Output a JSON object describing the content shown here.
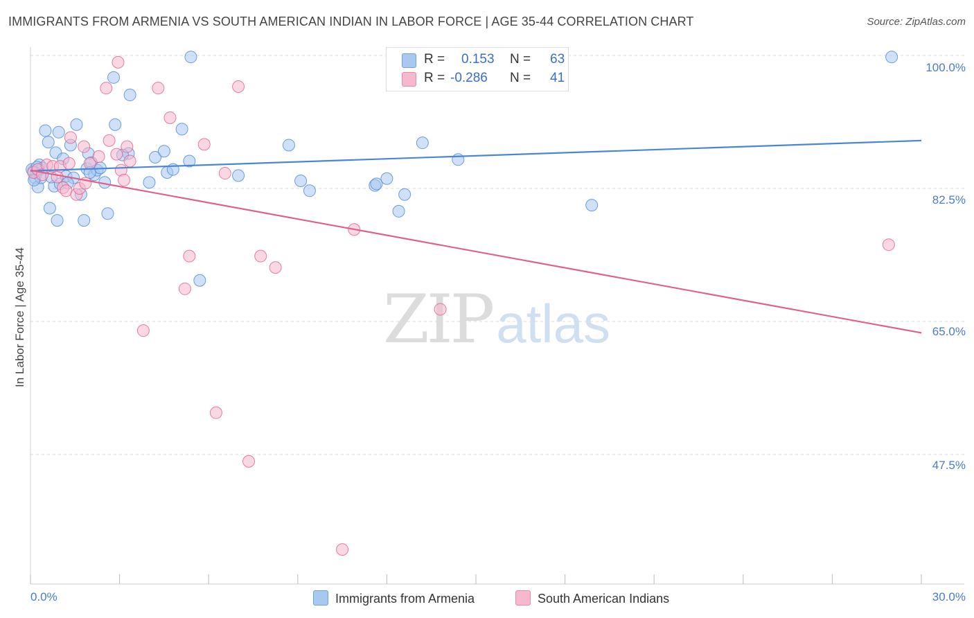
{
  "title": "IMMIGRANTS FROM ARMENIA VS SOUTH AMERICAN INDIAN IN LABOR FORCE | AGE 35-44 CORRELATION CHART",
  "source": "Source: ZipAtlas.com",
  "watermark": {
    "zip": "ZIP",
    "atlas": "atlas"
  },
  "legend": {
    "rows": [
      {
        "r_label": "R =",
        "r_value": "0.153",
        "n_label": "N =",
        "n_value": "63",
        "color": "#a9c8f0"
      },
      {
        "r_label": "R =",
        "r_value": "-0.286",
        "n_label": "N =",
        "n_value": "41",
        "color": "#f6b8cc"
      }
    ]
  },
  "bottom_legend": [
    {
      "label": "Immigrants from Armenia",
      "color": "#a9c8f0"
    },
    {
      "label": "South American Indians",
      "color": "#f6b8cc"
    }
  ],
  "chart_data": {
    "type": "scatter",
    "title": "IMMIGRANTS FROM ARMENIA VS SOUTH AMERICAN INDIAN IN LABOR FORCE | AGE 35-44 CORRELATION CHART",
    "xlabel": "",
    "ylabel": "In Labor Force | Age 35-44",
    "xlim": [
      0,
      30
    ],
    "ylim": [
      32,
      102
    ],
    "x_tick_labels": [
      "0.0%",
      "30.0%"
    ],
    "y_ticks": [
      47.5,
      65.0,
      82.5,
      100.0
    ],
    "y_tick_labels": [
      "47.5%",
      "65.0%",
      "82.5%",
      "100.0%"
    ],
    "grid": "horizontal dashed",
    "legend_position": "top-center",
    "series": [
      {
        "name": "Immigrants from Armenia",
        "color": "#4a86d8",
        "fill": "#a9c8f0",
        "points": [
          [
            0.1,
            84.8
          ],
          [
            0.15,
            83.9
          ],
          [
            0.2,
            84.5
          ],
          [
            0.25,
            82.7
          ],
          [
            0.3,
            85.6
          ],
          [
            0.35,
            83.9
          ],
          [
            0.4,
            85.2
          ],
          [
            0.5,
            90.1
          ],
          [
            0.6,
            88.6
          ],
          [
            0.65,
            79.9
          ],
          [
            0.8,
            82.8
          ],
          [
            0.85,
            87.2
          ],
          [
            0.9,
            78.3
          ],
          [
            0.95,
            89.9
          ],
          [
            1.0,
            83.1
          ],
          [
            1.1,
            86.4
          ],
          [
            1.2,
            84.1
          ],
          [
            1.35,
            88.2
          ],
          [
            1.45,
            83.9
          ],
          [
            1.55,
            90.9
          ],
          [
            1.7,
            81.7
          ],
          [
            1.8,
            78.3
          ],
          [
            1.9,
            85.1
          ],
          [
            1.95,
            87.1
          ],
          [
            2.05,
            85.9
          ],
          [
            2.15,
            84.3
          ],
          [
            2.25,
            84.9
          ],
          [
            2.35,
            85.2
          ],
          [
            2.5,
            83.3
          ],
          [
            2.6,
            79.2
          ],
          [
            2.8,
            97.1
          ],
          [
            2.85,
            90.9
          ],
          [
            3.3,
            87.1
          ],
          [
            3.35,
            94.8
          ],
          [
            4.0,
            83.3
          ],
          [
            4.2,
            86.6
          ],
          [
            4.5,
            87.4
          ],
          [
            4.6,
            84.6
          ],
          [
            4.8,
            85.0
          ],
          [
            5.1,
            90.3
          ],
          [
            5.35,
            86.1
          ],
          [
            5.4,
            99.8
          ],
          [
            5.7,
            70.4
          ],
          [
            7.0,
            84.2
          ],
          [
            8.7,
            88.2
          ],
          [
            9.1,
            83.5
          ],
          [
            9.4,
            82.2
          ],
          [
            11.6,
            82.9
          ],
          [
            11.65,
            83.1
          ],
          [
            12.0,
            83.8
          ],
          [
            12.4,
            79.5
          ],
          [
            12.6,
            81.7
          ],
          [
            13.2,
            88.5
          ],
          [
            14.4,
            86.3
          ],
          [
            18.9,
            80.3
          ],
          [
            29.0,
            99.8
          ],
          [
            0.05,
            85.0
          ],
          [
            0.12,
            83.6
          ],
          [
            0.22,
            85.3
          ],
          [
            2.0,
            84.6
          ],
          [
            3.1,
            86.9
          ],
          [
            1.25,
            83.2
          ],
          [
            0.7,
            84.0
          ]
        ],
        "trend": [
          [
            0,
            84.8
          ],
          [
            30,
            88.8
          ]
        ]
      },
      {
        "name": "South American Indians",
        "color": "#e0608a",
        "fill": "#f6b8cc",
        "points": [
          [
            0.1,
            84.6
          ],
          [
            0.25,
            85.0
          ],
          [
            0.4,
            84.3
          ],
          [
            0.55,
            85.6
          ],
          [
            0.75,
            85.4
          ],
          [
            0.9,
            84.0
          ],
          [
            1.0,
            85.4
          ],
          [
            1.1,
            82.6
          ],
          [
            1.2,
            82.2
          ],
          [
            1.3,
            85.8
          ],
          [
            1.35,
            89.2
          ],
          [
            1.55,
            81.7
          ],
          [
            1.65,
            82.5
          ],
          [
            1.8,
            88.0
          ],
          [
            1.85,
            83.2
          ],
          [
            2.0,
            85.8
          ],
          [
            2.3,
            86.7
          ],
          [
            2.55,
            95.7
          ],
          [
            2.65,
            88.8
          ],
          [
            2.9,
            87.0
          ],
          [
            2.95,
            99.1
          ],
          [
            3.05,
            84.9
          ],
          [
            3.15,
            83.6
          ],
          [
            3.25,
            88.0
          ],
          [
            3.35,
            86.1
          ],
          [
            3.8,
            63.8
          ],
          [
            4.3,
            95.7
          ],
          [
            4.7,
            91.8
          ],
          [
            5.2,
            69.3
          ],
          [
            5.35,
            73.6
          ],
          [
            5.85,
            88.3
          ],
          [
            6.25,
            53.0
          ],
          [
            6.55,
            84.5
          ],
          [
            7.0,
            95.9
          ],
          [
            7.35,
            46.6
          ],
          [
            7.75,
            73.6
          ],
          [
            8.25,
            72.1
          ],
          [
            10.5,
            35.0
          ],
          [
            10.9,
            77.1
          ],
          [
            13.8,
            66.6
          ],
          [
            28.9,
            75.1
          ]
        ],
        "trend": [
          [
            0,
            84.9
          ],
          [
            30,
            63.5
          ]
        ]
      }
    ]
  }
}
